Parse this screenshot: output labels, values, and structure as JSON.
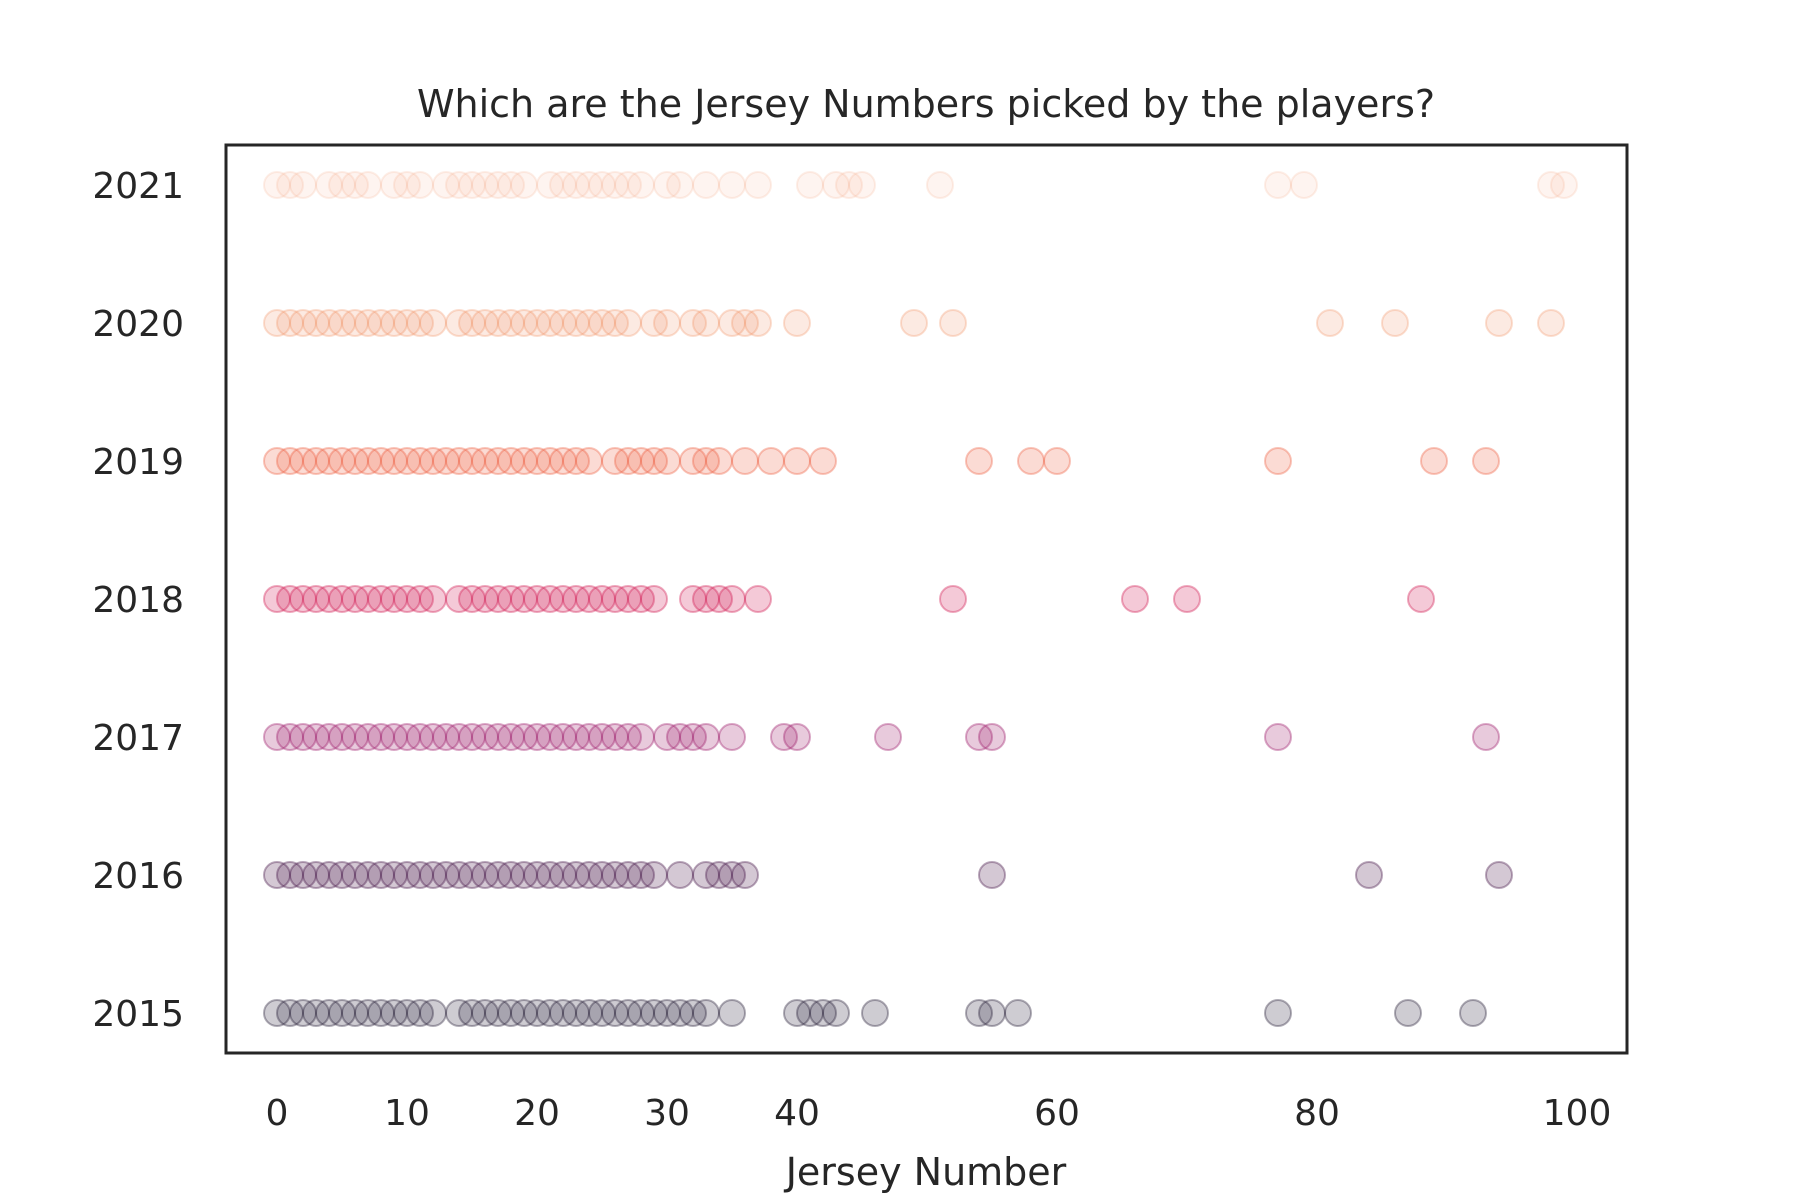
{
  "chart_data": {
    "type": "scatter",
    "title": "Which are the Jersey Numbers picked by the players?",
    "xlabel": "Jersey Number",
    "ylabel": "",
    "xlim": [
      -4,
      104
    ],
    "x_ticks": [
      0,
      10,
      20,
      30,
      40,
      60,
      80,
      100
    ],
    "x_tick_labels": [
      "0",
      "10",
      "20",
      "30",
      "40",
      "60",
      "80",
      "100"
    ],
    "categories": [
      "2021",
      "2020",
      "2019",
      "2018",
      "2017",
      "2016",
      "2015"
    ],
    "grid": false,
    "legend": "none",
    "series": [
      {
        "year": "2021",
        "color": "#F4A582",
        "opacity": 0.12,
        "x": [
          0,
          1,
          2,
          4,
          5,
          6,
          7,
          9,
          10,
          11,
          13,
          14,
          15,
          16,
          17,
          18,
          19,
          21,
          22,
          23,
          24,
          25,
          26,
          27,
          28,
          30,
          31,
          33,
          35,
          37,
          41,
          43,
          44,
          45,
          51,
          77,
          79,
          98,
          99
        ]
      },
      {
        "year": "2020",
        "color": "#F08C5C",
        "opacity": 0.18,
        "x": [
          0,
          1,
          2,
          3,
          4,
          5,
          6,
          7,
          8,
          9,
          10,
          11,
          12,
          14,
          15,
          16,
          17,
          18,
          19,
          20,
          21,
          22,
          23,
          24,
          25,
          26,
          27,
          29,
          30,
          32,
          33,
          35,
          36,
          37,
          40,
          49,
          52,
          81,
          86,
          94,
          98
        ]
      },
      {
        "year": "2019",
        "color": "#EE5A3C",
        "opacity": 0.22,
        "x": [
          0,
          1,
          2,
          3,
          4,
          5,
          6,
          7,
          8,
          9,
          10,
          11,
          12,
          13,
          14,
          15,
          16,
          17,
          18,
          19,
          20,
          21,
          22,
          23,
          24,
          26,
          27,
          28,
          29,
          30,
          32,
          33,
          34,
          36,
          38,
          40,
          42,
          54,
          58,
          60,
          77,
          89,
          93
        ]
      },
      {
        "year": "2018",
        "color": "#D31F56",
        "opacity": 0.24,
        "x": [
          0,
          1,
          2,
          3,
          4,
          5,
          6,
          7,
          8,
          9,
          10,
          11,
          12,
          14,
          15,
          16,
          17,
          18,
          19,
          20,
          21,
          22,
          23,
          24,
          25,
          26,
          27,
          28,
          29,
          32,
          33,
          34,
          35,
          37,
          52,
          66,
          70,
          88
        ]
      },
      {
        "year": "2017",
        "color": "#A0206E",
        "opacity": 0.24,
        "x": [
          0,
          1,
          2,
          3,
          4,
          5,
          6,
          7,
          8,
          9,
          10,
          11,
          12,
          13,
          14,
          15,
          16,
          17,
          18,
          19,
          20,
          21,
          22,
          23,
          24,
          25,
          26,
          27,
          28,
          30,
          31,
          32,
          33,
          35,
          39,
          40,
          47,
          54,
          55,
          77,
          93
        ]
      },
      {
        "year": "2016",
        "color": "#4A1A4C",
        "opacity": 0.24,
        "x": [
          0,
          1,
          2,
          3,
          4,
          5,
          6,
          7,
          8,
          9,
          10,
          11,
          12,
          13,
          14,
          15,
          16,
          17,
          18,
          19,
          20,
          21,
          22,
          23,
          24,
          25,
          26,
          27,
          28,
          29,
          31,
          33,
          34,
          35,
          36,
          55,
          84,
          94
        ]
      },
      {
        "year": "2015",
        "color": "#1E1830",
        "opacity": 0.22,
        "x": [
          0,
          1,
          2,
          3,
          4,
          5,
          6,
          7,
          8,
          9,
          10,
          11,
          12,
          14,
          15,
          16,
          17,
          18,
          19,
          20,
          21,
          22,
          23,
          24,
          25,
          26,
          27,
          28,
          29,
          30,
          31,
          32,
          33,
          35,
          40,
          41,
          42,
          43,
          46,
          54,
          55,
          57,
          77,
          87,
          92
        ]
      }
    ]
  }
}
